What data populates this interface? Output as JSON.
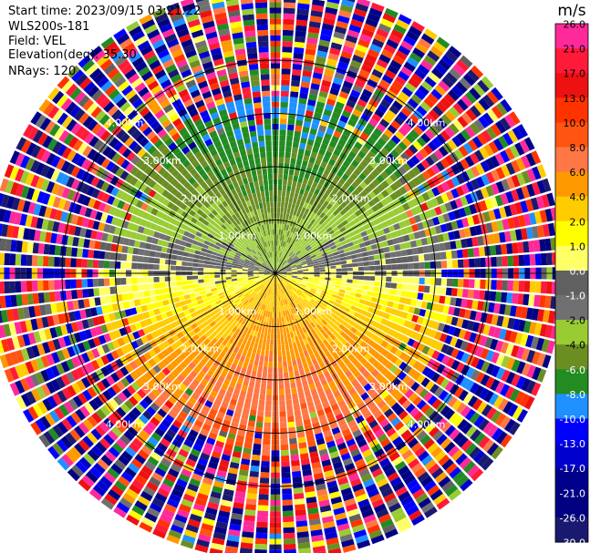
{
  "header": {
    "start_time": "Start time: 2023/09/15 03:21:22",
    "instrument": "WLS200s-181",
    "field": "Field: VEL",
    "elevation": "Elevation(deg): 35.30",
    "nrays": "NRays: 120"
  },
  "colorbar": {
    "unit": "m/s",
    "ticks": [
      "26.0",
      "21.0",
      "17.0",
      "13.0",
      "10.0",
      "8.0",
      "6.0",
      "4.0",
      "2.0",
      "1.0",
      "0.0",
      "-1.0",
      "-2.0",
      "-4.0",
      "-6.0",
      "-8.0",
      "-10.0",
      "-13.0",
      "-17.0",
      "-21.0",
      "-26.0",
      "-30.0"
    ],
    "colors": [
      "#ff2a9a",
      "#ff1a3a",
      "#ee1111",
      "#ff3300",
      "#ff5511",
      "#ff7744",
      "#ff9900",
      "#ffcc00",
      "#ffff00",
      "#ffff66",
      "#606060",
      "#707070",
      "#99cc33",
      "#6b8e23",
      "#228b22",
      "#1e90ff",
      "#0000ff",
      "#0000cc",
      "#00008b",
      "#000080",
      "#191970"
    ]
  },
  "chart_data": {
    "type": "ppi",
    "field": "VEL",
    "units": "m/s",
    "nrays": 120,
    "elevation_deg": 35.3,
    "range_rings_km": [
      1,
      2,
      3,
      4
    ],
    "ring_labels": [
      "1.00km",
      "2.00km",
      "3.00km",
      "4.00km"
    ],
    "colorbar_ticks": [
      26.0,
      21.0,
      17.0,
      13.0,
      10.0,
      8.0,
      6.0,
      4.0,
      2.0,
      1.0,
      0.0,
      -1.0,
      -2.0,
      -4.0,
      -6.0,
      -8.0,
      -10.0,
      -13.0,
      -17.0,
      -21.0,
      -26.0,
      -30.0
    ],
    "vmin": -30.0,
    "vmax": 26.0,
    "max_range_km": 5.4,
    "dominant_pattern": "negative velocities (greens) to the north, positive velocities (yellows/oranges) to the south, near-zero (grey) band east-west, noisy outer ranges"
  }
}
